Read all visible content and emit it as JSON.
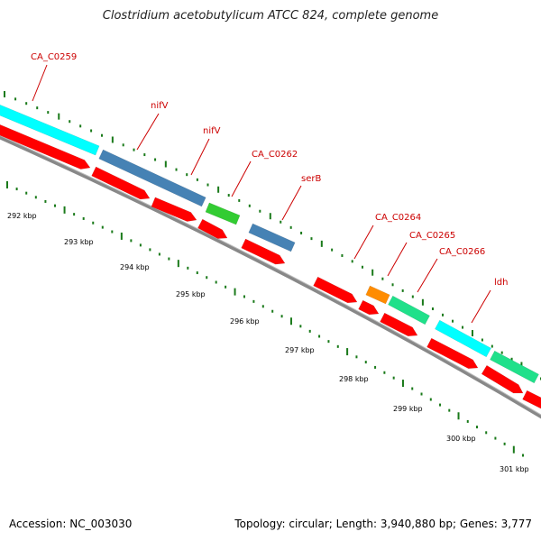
{
  "title": "Clostridium acetobutylicum ATCC 824, complete genome",
  "accession": "Accession: NC_003030",
  "topology": "Topology: circular; Length: 3,940,880 bp; Genes: 3,777",
  "colors": {
    "red": "#ff0000",
    "red_dark": "#b00000",
    "cyan": "#00ffff",
    "steelblue": "#4682b4",
    "green": "#33cc33",
    "orange": "#ff8c00",
    "seagreen": "#20e08a",
    "backbone": "#888888",
    "tick": "#1a7a1a",
    "label": "#cc0000"
  },
  "scale_labels": [
    "292 kbp",
    "293 kbp",
    "294 kbp",
    "295 kbp",
    "296 kbp",
    "297 kbp",
    "298 kbp",
    "299 kbp",
    "300 kbp",
    "301 kbp"
  ],
  "gene_labels": [
    "CA_C0259",
    "nifV",
    "nifV",
    "CA_C0262",
    "serB",
    "CA_C0264",
    "CA_C0265",
    "CA_C0266",
    "ldh"
  ]
}
